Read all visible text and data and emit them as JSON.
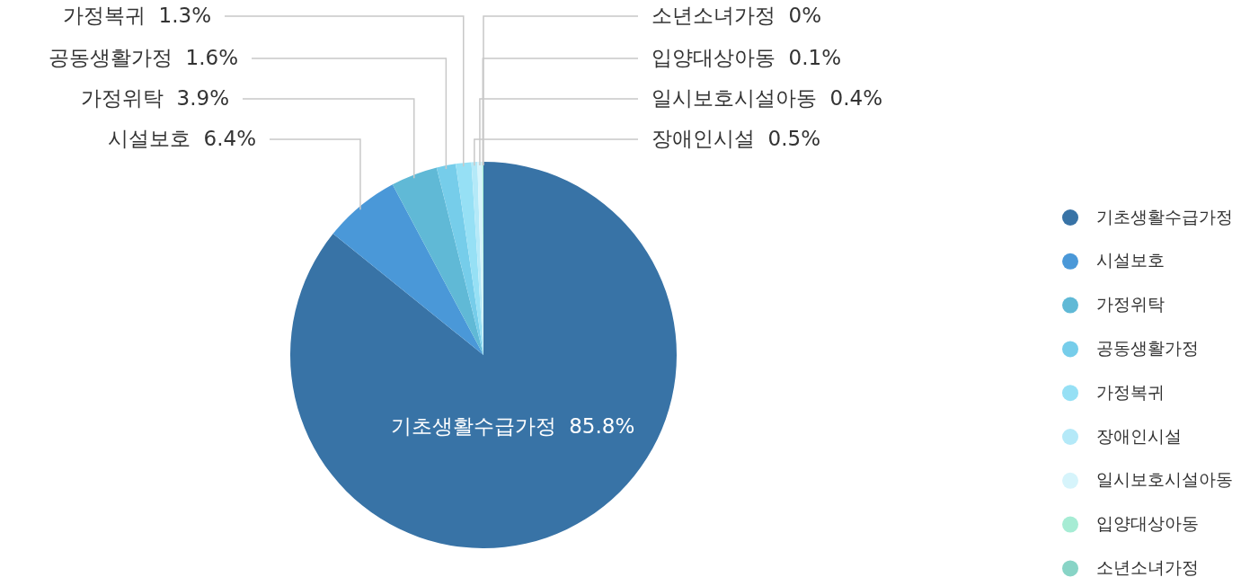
{
  "chart_data": {
    "type": "pie",
    "categories": [
      "기초생활수급가정",
      "시설보호",
      "가정위탁",
      "공동생활가정",
      "가정복귀",
      "장애인시설",
      "일시보호시설아동",
      "입양대상아동",
      "소년소녀가정"
    ],
    "values": [
      85.8,
      6.4,
      3.9,
      1.6,
      1.3,
      0.5,
      0.4,
      0.1,
      0
    ],
    "value_labels": [
      "85.8%",
      "6.4%",
      "3.9%",
      "1.6%",
      "1.3%",
      "0.5%",
      "0.4%",
      "0.1%",
      "0%"
    ],
    "colors": [
      "#3873a6",
      "#4a98d8",
      "#60b9d6",
      "#76cdea",
      "#96e0f5",
      "#b4e9f8",
      "#d6f4fb",
      "#a6ecd4",
      "#88d4c6"
    ],
    "legend": "right"
  }
}
